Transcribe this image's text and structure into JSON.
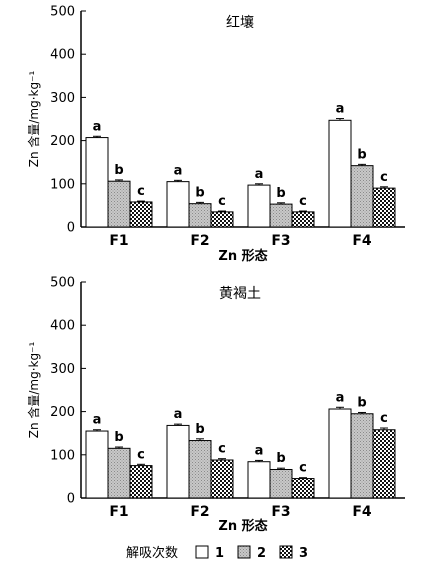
{
  "chart_data": [
    {
      "type": "bar",
      "title": "红壤",
      "xlabel": "Zn 形态",
      "ylabel": "Zn 含量/mg·kg⁻¹",
      "ylim": [
        0,
        500
      ],
      "yticks": [
        0,
        100,
        200,
        300,
        400,
        500
      ],
      "categories": [
        "F1",
        "F2",
        "F3",
        "F4"
      ],
      "series": [
        {
          "name": "1",
          "values": [
            207,
            105,
            97,
            247
          ],
          "errors": [
            3,
            3,
            3,
            4
          ],
          "labels": [
            "a",
            "a",
            "a",
            "a"
          ]
        },
        {
          "name": "2",
          "values": [
            106,
            54,
            53,
            142
          ],
          "errors": [
            3,
            3,
            3,
            3
          ],
          "labels": [
            "b",
            "b",
            "b",
            "b"
          ]
        },
        {
          "name": "3",
          "values": [
            58,
            35,
            35,
            90
          ],
          "errors": [
            2,
            2,
            2,
            3
          ],
          "labels": [
            "c",
            "c",
            "c",
            "c"
          ]
        }
      ]
    },
    {
      "type": "bar",
      "title": "黄褐土",
      "xlabel": "Zn 形态",
      "ylabel": "Zn 含量/mg·kg⁻¹",
      "ylim": [
        0,
        500
      ],
      "yticks": [
        0,
        100,
        200,
        300,
        400,
        500
      ],
      "categories": [
        "F1",
        "F2",
        "F3",
        "F4"
      ],
      "series": [
        {
          "name": "1",
          "values": [
            155,
            168,
            84,
            206
          ],
          "errors": [
            3,
            3,
            3,
            4
          ],
          "labels": [
            "a",
            "a",
            "a",
            "a"
          ]
        },
        {
          "name": "2",
          "values": [
            115,
            133,
            66,
            195
          ],
          "errors": [
            3,
            4,
            3,
            3
          ],
          "labels": [
            "b",
            "b",
            "b",
            "b"
          ]
        },
        {
          "name": "3",
          "values": [
            75,
            88,
            45,
            158
          ],
          "errors": [
            3,
            3,
            2,
            4
          ],
          "labels": [
            "c",
            "c",
            "c",
            "c"
          ]
        }
      ]
    }
  ],
  "legend": {
    "title": "解吸次数",
    "items": [
      "1",
      "2",
      "3"
    ]
  }
}
